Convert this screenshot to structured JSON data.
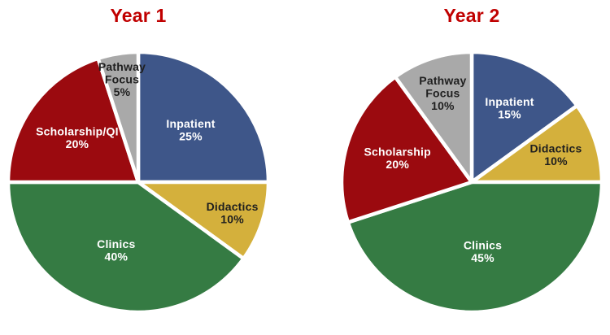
{
  "style": {
    "title_color": "#C00000",
    "slice_border_color": "#FFFFFF",
    "background_color": "#FFFFFF"
  },
  "chart_data": [
    {
      "type": "pie",
      "title": "Year 1",
      "start_angle_deg": 0,
      "direction": "clockwise",
      "legend": "none",
      "slices": [
        {
          "label": "Inpatient",
          "value": 25,
          "color": "#3E5689",
          "text_color": "#FFFFFF",
          "label_lines": [
            "Inpatient",
            "25%"
          ],
          "label_r": 0.57
        },
        {
          "label": "Didactics",
          "value": 10,
          "color": "#D4B03C",
          "text_color": "#1F1F1F",
          "label_lines": [
            "Didactics",
            "10%"
          ],
          "label_r": 0.76
        },
        {
          "label": "Clinics",
          "value": 40,
          "color": "#357B43",
          "text_color": "#FFFFFF",
          "label_lines": [
            "Clinics",
            "40%"
          ],
          "label_r": 0.55
        },
        {
          "label": "Scholarship/QI",
          "value": 20,
          "color": "#9B0A0F",
          "text_color": "#FFFFFF",
          "label_lines": [
            "Scholarship/QI",
            "20%"
          ],
          "label_r": 0.58
        },
        {
          "label": "Pathway Focus",
          "value": 5,
          "color": "#A9A9A9",
          "text_color": "#1F1F1F",
          "label_lines": [
            "Pathway",
            "Focus",
            "5%"
          ],
          "label_r": 0.8
        }
      ]
    },
    {
      "type": "pie",
      "title": "Year 2",
      "start_angle_deg": 0,
      "direction": "clockwise",
      "legend": "none",
      "slices": [
        {
          "label": "Inpatient",
          "value": 15,
          "color": "#3E5689",
          "text_color": "#FFFFFF",
          "label_lines": [
            "Inpatient",
            "15%"
          ],
          "label_r": 0.64
        },
        {
          "label": "Didactics",
          "value": 10,
          "color": "#D4B03C",
          "text_color": "#1F1F1F",
          "label_lines": [
            "Didactics",
            "10%"
          ],
          "label_r": 0.68
        },
        {
          "label": "Clinics",
          "value": 45,
          "color": "#357B43",
          "text_color": "#FFFFFF",
          "label_lines": [
            "Clinics",
            "45%"
          ],
          "label_r": 0.54
        },
        {
          "label": "Scholarship",
          "value": 20,
          "color": "#9B0A0F",
          "text_color": "#FFFFFF",
          "label_lines": [
            "Scholarship",
            "20%"
          ],
          "label_r": 0.6
        },
        {
          "label": "Pathway Focus",
          "value": 10,
          "color": "#A9A9A9",
          "text_color": "#1F1F1F",
          "label_lines": [
            "Pathway",
            "Focus",
            "10%"
          ],
          "label_r": 0.72
        }
      ]
    }
  ]
}
